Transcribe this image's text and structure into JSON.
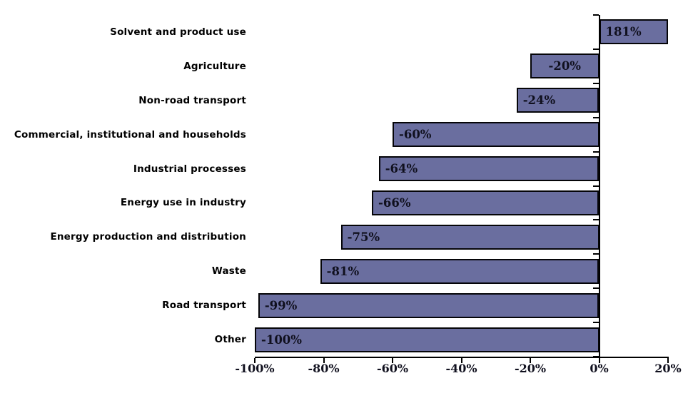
{
  "chart_data": {
    "type": "bar",
    "orientation": "horizontal",
    "title": "",
    "xlabel": "",
    "ylabel": "",
    "xlim": [
      -100,
      20
    ],
    "grid": false,
    "legend": null,
    "x_tick_values": [
      -100,
      -80,
      -60,
      -40,
      -20,
      0,
      20
    ],
    "x_tick_labels": [
      "-100%",
      "-80%",
      "-60%",
      "-40%",
      "-20%",
      "0%",
      "20%"
    ],
    "categories": [
      "Solvent and product use",
      "Agriculture",
      "Non-road transport",
      "Commercial, institutional and households",
      "Industrial processes",
      "Energy use in industry",
      "Energy production and distribution",
      "Waste",
      "Road transport",
      "Other"
    ],
    "values": [
      181,
      -20,
      -24,
      -60,
      -64,
      -66,
      -75,
      -81,
      -99,
      -100
    ],
    "value_labels": [
      "181%",
      "-20%",
      "-24%",
      "-60%",
      "-64%",
      "-66%",
      "-75%",
      "-81%",
      "-99%",
      "-100%"
    ],
    "colors": {
      "bar_fill": "#6A6E9F",
      "bar_border": "#050508",
      "axis": "#000000",
      "value_label_text": "#10101e",
      "category_text": "#000000",
      "background": "#FFFFFF"
    }
  }
}
